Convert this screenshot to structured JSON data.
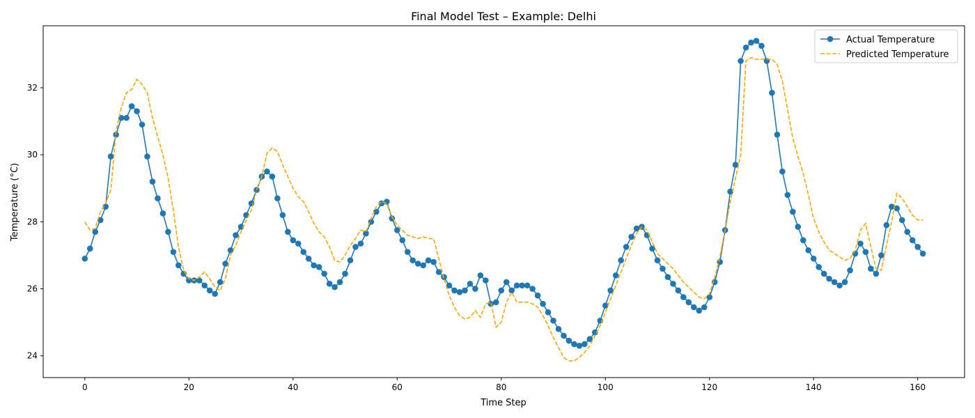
{
  "chart_data": {
    "type": "line",
    "title": "Final Model Test – Example: Delhi",
    "xlabel": "Time Step",
    "ylabel": "Temperature (°C)",
    "xlim": [
      -8,
      169
    ],
    "ylim": [
      23.35,
      33.85
    ],
    "xticks": [
      0,
      20,
      40,
      60,
      80,
      100,
      120,
      140,
      160
    ],
    "yticks": [
      24,
      26,
      28,
      30,
      32
    ],
    "grid": false,
    "legend_position": "top-right",
    "colors": {
      "actual": "#1f77b4",
      "predicted": "#ffa500"
    },
    "series": [
      {
        "name": "Actual Temperature",
        "values": [
          26.9,
          27.2,
          27.7,
          28.05,
          28.45,
          29.95,
          30.6,
          31.1,
          31.1,
          31.45,
          31.3,
          30.9,
          29.95,
          29.2,
          28.7,
          28.25,
          27.7,
          27.1,
          26.7,
          26.45,
          26.25,
          26.25,
          26.25,
          26.1,
          25.95,
          25.85,
          26.2,
          26.75,
          27.15,
          27.6,
          27.85,
          28.2,
          28.55,
          28.95,
          29.35,
          29.5,
          29.35,
          28.7,
          28.2,
          27.7,
          27.45,
          27.35,
          27.1,
          26.9,
          26.7,
          26.65,
          26.45,
          26.15,
          26.05,
          26.2,
          26.45,
          26.85,
          27.25,
          27.35,
          27.65,
          28.0,
          28.3,
          28.55,
          28.6,
          28.1,
          27.75,
          27.45,
          27.1,
          26.85,
          26.75,
          26.7,
          26.85,
          26.8,
          26.5,
          26.35,
          26.1,
          25.95,
          25.9,
          25.95,
          26.15,
          26.0,
          26.4,
          26.25,
          25.55,
          25.6,
          25.95,
          26.2,
          25.95,
          26.1,
          26.1,
          26.1,
          26.0,
          25.8,
          25.55,
          25.3,
          25.05,
          24.8,
          24.6,
          24.45,
          24.35,
          24.3,
          24.35,
          24.5,
          24.7,
          25.05,
          25.5,
          25.95,
          26.4,
          26.85,
          27.25,
          27.55,
          27.8,
          27.85,
          27.6,
          27.2,
          26.85,
          26.6,
          26.35,
          26.15,
          25.95,
          25.75,
          25.6,
          25.45,
          25.35,
          25.45,
          25.75,
          26.2,
          26.8,
          27.75,
          28.9,
          29.7,
          32.8,
          33.2,
          33.35,
          33.4,
          33.25,
          32.8,
          31.85,
          30.6,
          29.5,
          28.8,
          28.3,
          27.85,
          27.45,
          27.15,
          26.9,
          26.65,
          26.45,
          26.3,
          26.2,
          26.1,
          26.2,
          26.55,
          27.05,
          27.35,
          27.1,
          26.6,
          26.45,
          27.0,
          27.9,
          28.45,
          28.4,
          28.05,
          27.7,
          27.45,
          27.25,
          27.05
        ]
      },
      {
        "name": "Predicted Temperature",
        "values": [
          28.0,
          27.75,
          27.8,
          28.3,
          28.55,
          28.95,
          30.7,
          31.4,
          31.85,
          31.95,
          32.25,
          32.1,
          31.85,
          31.1,
          30.55,
          30.0,
          29.3,
          28.35,
          27.25,
          26.55,
          26.3,
          26.25,
          26.35,
          26.5,
          26.3,
          26.05,
          25.95,
          26.3,
          27.0,
          27.3,
          27.7,
          28.05,
          28.35,
          28.95,
          29.35,
          30.05,
          30.2,
          30.1,
          29.7,
          29.35,
          29.0,
          28.75,
          28.6,
          28.3,
          27.95,
          27.7,
          27.55,
          27.25,
          26.85,
          26.8,
          27.0,
          27.3,
          27.5,
          27.75,
          27.7,
          28.1,
          28.45,
          28.6,
          28.55,
          28.15,
          27.9,
          27.75,
          27.6,
          27.55,
          27.5,
          27.55,
          27.5,
          27.5,
          26.9,
          26.3,
          25.8,
          25.45,
          25.2,
          25.1,
          25.15,
          25.35,
          25.15,
          25.55,
          25.6,
          24.85,
          25.0,
          25.6,
          25.9,
          25.6,
          25.6,
          25.6,
          25.55,
          25.45,
          25.2,
          24.9,
          24.55,
          24.25,
          23.95,
          23.85,
          23.85,
          23.95,
          24.1,
          24.3,
          24.6,
          24.9,
          25.3,
          25.7,
          26.1,
          26.5,
          26.9,
          27.3,
          27.65,
          27.85,
          27.75,
          27.4,
          27.05,
          26.9,
          26.75,
          26.6,
          26.4,
          26.2,
          26.05,
          25.9,
          25.75,
          25.7,
          25.85,
          26.35,
          26.95,
          27.75,
          28.6,
          29.3,
          30.0,
          32.8,
          32.9,
          32.85,
          32.85,
          32.85,
          32.85,
          32.7,
          32.2,
          31.35,
          30.5,
          29.95,
          29.45,
          28.8,
          28.1,
          27.7,
          27.4,
          27.15,
          27.05,
          26.95,
          26.85,
          26.9,
          27.15,
          27.75,
          27.95,
          27.25,
          26.6,
          26.55,
          27.3,
          28.0,
          28.85,
          28.7,
          28.45,
          28.2,
          28.05,
          28.05
        ]
      }
    ]
  }
}
